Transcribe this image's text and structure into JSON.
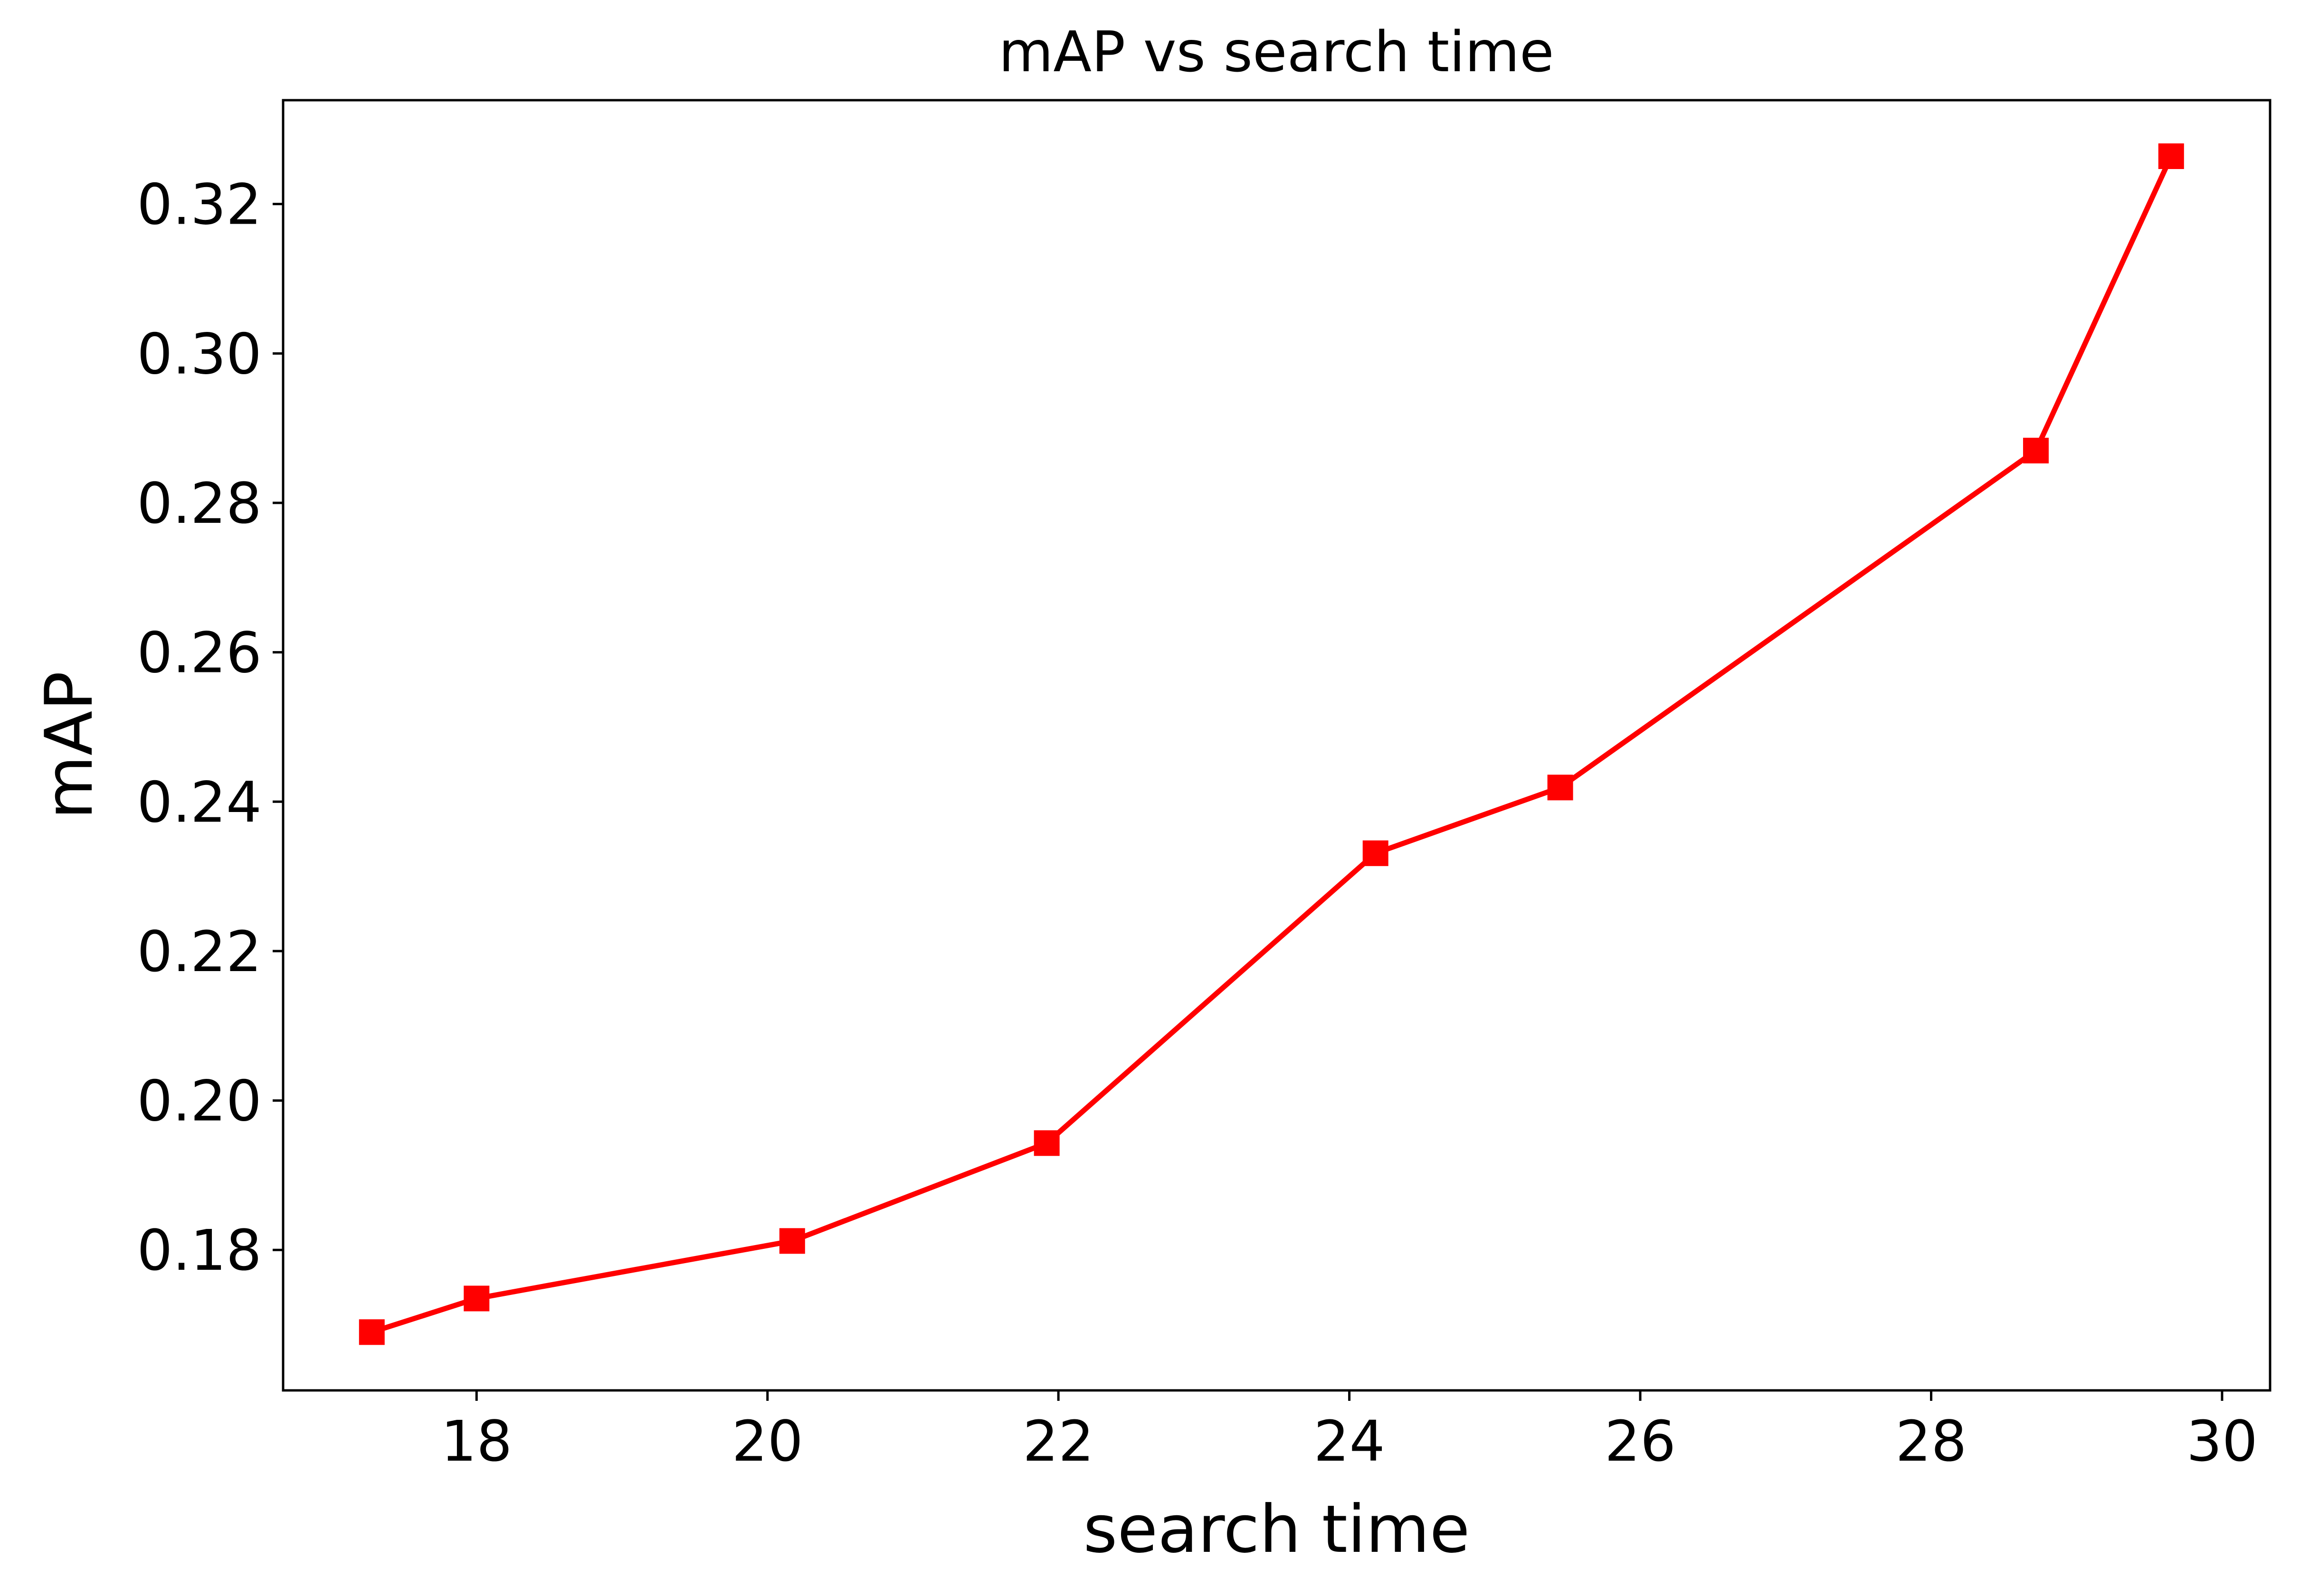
{
  "chart_data": {
    "type": "line",
    "title": "mAP vs search time",
    "xlabel": "search time",
    "ylabel": "mAP",
    "xlim": [
      16.67,
      30.33
    ],
    "ylim": [
      0.1612,
      0.3339
    ],
    "xticks": [
      18,
      20,
      22,
      24,
      26,
      28,
      30
    ],
    "yticks": [
      0.18,
      0.2,
      0.22,
      0.24,
      0.26,
      0.28,
      0.3,
      0.32
    ],
    "grid": false,
    "legend": "none",
    "series": [
      {
        "color": "#ff0000",
        "marker": "square",
        "points": [
          {
            "x": 17.28,
            "y": 0.169
          },
          {
            "x": 18.0,
            "y": 0.1735
          },
          {
            "x": 20.17,
            "y": 0.1812
          },
          {
            "x": 21.92,
            "y": 0.1943
          },
          {
            "x": 24.18,
            "y": 0.2331
          },
          {
            "x": 25.45,
            "y": 0.2419
          },
          {
            "x": 28.72,
            "y": 0.287
          },
          {
            "x": 29.65,
            "y": 0.3264
          }
        ]
      }
    ]
  }
}
